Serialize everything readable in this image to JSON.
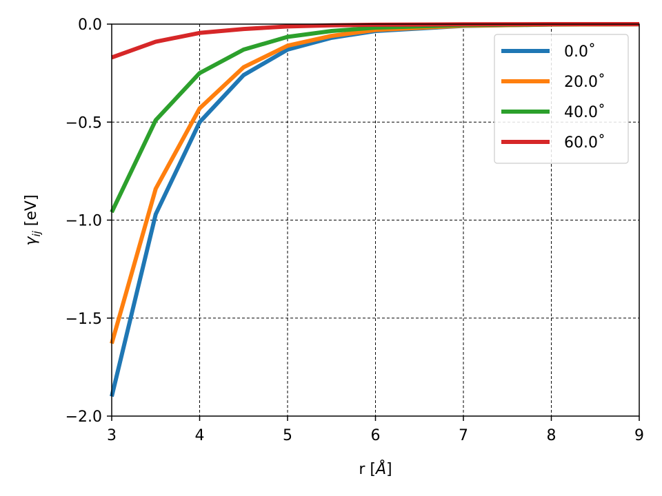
{
  "chart_data": {
    "type": "line",
    "xlabel_parts": {
      "main": "r [",
      "var": "Å",
      "close": "]"
    },
    "ylabel_parts": {
      "main": "γ",
      "sub": "ij",
      "unit": " [eV]"
    },
    "xlim": [
      3,
      9
    ],
    "ylim": [
      -2.0,
      0.0
    ],
    "xticks": [
      3,
      4,
      5,
      6,
      7,
      8,
      9
    ],
    "xtick_labels": [
      "3",
      "4",
      "5",
      "6",
      "7",
      "8",
      "9"
    ],
    "yticks": [
      0.0,
      -0.5,
      -1.0,
      -1.5,
      -2.0
    ],
    "ytick_labels": [
      "0.0",
      "−0.5",
      "−1.0",
      "−1.5",
      "−2.0"
    ],
    "grid": true,
    "legend_position": "top-right",
    "colors": {
      "series1": "#1f77b4",
      "series2": "#ff7f0e",
      "series3": "#2ca02c",
      "series4": "#d62728"
    },
    "x": [
      3.0,
      3.5,
      4.0,
      4.5,
      5.0,
      5.5,
      6.0,
      7.0,
      8.0,
      9.0
    ],
    "series": [
      {
        "name": "0.0˚",
        "values": [
          -1.9,
          -0.97,
          -0.5,
          -0.26,
          -0.13,
          -0.07,
          -0.035,
          -0.009,
          -0.002,
          -0.001
        ]
      },
      {
        "name": "20.0˚",
        "values": [
          -1.63,
          -0.84,
          -0.43,
          -0.22,
          -0.11,
          -0.06,
          -0.03,
          -0.008,
          -0.002,
          -0.001
        ]
      },
      {
        "name": "40.0˚",
        "values": [
          -0.96,
          -0.49,
          -0.25,
          -0.13,
          -0.065,
          -0.035,
          -0.018,
          -0.005,
          -0.001,
          0.0
        ]
      },
      {
        "name": "60.0˚",
        "values": [
          -0.17,
          -0.09,
          -0.045,
          -0.025,
          -0.012,
          -0.006,
          -0.003,
          -0.001,
          0.0,
          0.0
        ]
      }
    ]
  }
}
